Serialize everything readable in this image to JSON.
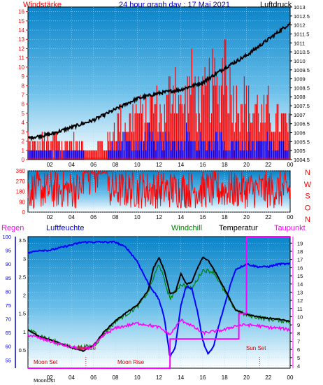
{
  "header": {
    "left_title": "Windstärke",
    "center_title": "24 hour graph day : 17 Mai 2021",
    "right_title": "Luftdruck"
  },
  "colors": {
    "wind": "#ff0000",
    "wind_gust_low": "#0000ff",
    "pressure": "#000000",
    "humidity": "#0000ff",
    "windchill": "#008000",
    "temperature": "#000000",
    "dewpoint": "#ff00ff",
    "rain": "#ff00ff",
    "title_blue": "#0000cc",
    "label_red": "#ff0000"
  },
  "labels": {
    "regen": "Regen",
    "luftfeuchte": "Luftfeuchte",
    "windchill": "Windchill",
    "temperatur": "Temperatur",
    "taupunkt": "Taupunkt",
    "moon_set": "Moon Set",
    "sunrise": "Sunrise",
    "moon_rise": "Moon Rise",
    "sun_set": "Sun Set",
    "moon_ost": "MoonOst",
    "compass": [
      "N",
      "W",
      "S",
      "O",
      "N"
    ]
  },
  "chart_data": [
    {
      "type": "bar",
      "panel": "wind",
      "xlabel": "",
      "ylabel": "Windstärke",
      "x_ticks": [
        "02",
        "04",
        "06",
        "08",
        "10",
        "12",
        "14",
        "16",
        "18",
        "20",
        "22",
        "00"
      ],
      "y_ticks_left": [
        0,
        1,
        2,
        3,
        4,
        5,
        6,
        7,
        8,
        9,
        10,
        11,
        12,
        13,
        14,
        15,
        16
      ],
      "ylim": [
        0,
        16.5
      ],
      "y2_label": "Luftdruck",
      "y2_ticks": [
        "1004.5",
        "1005",
        "1005.5",
        "1006",
        "1006.5",
        "1007",
        "1007.5",
        "1008",
        "1008.5",
        "1009",
        "1009.5",
        "1010",
        "1010.5",
        "1011",
        "1011.5",
        "1012",
        "1012.5",
        "1013"
      ],
      "y2lim": [
        1004.5,
        1013
      ],
      "series": [
        {
          "name": "Luftdruck",
          "type": "line",
          "x": [
            0,
            2,
            4,
            6,
            8,
            10,
            12,
            14,
            16,
            18,
            20,
            22,
            24
          ],
          "values": [
            1005.7,
            1005.9,
            1006.3,
            1006.7,
            1007.3,
            1007.9,
            1008.2,
            1008.4,
            1008.8,
            1009.6,
            1010.3,
            1011.2,
            1012.1
          ]
        }
      ],
      "wind_bars": {
        "x_hours": [
          0,
          0.5,
          1,
          1.5,
          2,
          2.5,
          3,
          3.5,
          4,
          4.5,
          5,
          5.5,
          6,
          6.5,
          7,
          7.5,
          8,
          8.5,
          9,
          9.5,
          10,
          10.5,
          11,
          11.5,
          12,
          12.5,
          13,
          13.5,
          14,
          14.5,
          15,
          15.5,
          16,
          16.5,
          17,
          17.5,
          18,
          18.5,
          19,
          19.5,
          20,
          20.5,
          21,
          21.5,
          22,
          22.5,
          23,
          23.5
        ],
        "max_values": [
          3,
          2,
          2,
          3,
          2,
          4,
          2,
          2,
          3,
          2,
          2,
          2,
          1,
          2,
          2,
          3,
          5,
          6,
          5,
          6,
          7,
          6,
          7,
          8,
          7,
          6,
          10,
          12,
          7,
          9,
          11,
          9,
          8,
          10,
          11,
          9,
          16,
          10,
          8,
          10,
          8,
          7,
          8,
          6,
          7,
          6,
          6,
          5
        ],
        "mean_values": [
          1,
          1,
          1,
          1,
          1,
          1,
          1,
          1,
          1,
          1,
          1,
          0,
          0,
          0,
          0,
          1,
          2,
          2,
          2,
          2,
          2,
          2,
          3,
          2,
          2,
          2,
          3,
          2,
          2,
          3,
          2,
          2,
          2,
          2,
          2,
          3,
          2,
          2,
          2,
          2,
          2,
          2,
          2,
          2,
          2,
          2,
          2,
          2
        ]
      }
    },
    {
      "type": "scatter",
      "panel": "wind_direction",
      "y_ticks": [
        0,
        90,
        180,
        270,
        360
      ],
      "ylim": [
        0,
        360
      ],
      "x_ticks": [
        "02",
        "04",
        "06",
        "08",
        "10",
        "12",
        "14",
        "16",
        "18",
        "20",
        "22",
        "00"
      ]
    },
    {
      "type": "line",
      "panel": "climate",
      "x_ticks": [
        "02",
        "04",
        "06",
        "08",
        "10",
        "12",
        "14",
        "16",
        "18",
        "20",
        "22",
        "00"
      ],
      "y_humidity_ticks": [
        55,
        60,
        65,
        70,
        75,
        80,
        85,
        90,
        95,
        100
      ],
      "humidity_lim": [
        52,
        100
      ],
      "y_rain_ticks": [
        "0.5",
        "1",
        "1.5",
        "2",
        "2.5",
        "3",
        "3.5"
      ],
      "rain_lim": [
        0,
        3.6
      ],
      "y_temp_ticks": [
        4,
        5,
        6,
        7,
        8,
        9,
        10,
        11,
        12,
        13,
        14,
        15,
        16,
        17,
        18,
        19
      ],
      "temp_lim": [
        3.7,
        19.8
      ],
      "series": [
        {
          "name": "Luftfeuchte",
          "x": [
            0,
            1,
            2,
            3,
            4,
            5,
            6,
            7,
            8,
            9,
            10,
            11,
            12,
            12.5,
            13,
            13.5,
            14,
            14.5,
            15,
            15.5,
            16,
            16.5,
            17,
            17.5,
            18,
            18.5,
            19,
            20,
            21,
            22,
            23,
            24
          ],
          "values": [
            94,
            95,
            95,
            96,
            97,
            98,
            98,
            98,
            98,
            96,
            91,
            83,
            77,
            70,
            56,
            60,
            75,
            82,
            81,
            73,
            62,
            57,
            60,
            68,
            75,
            82,
            88,
            90,
            89,
            89,
            90,
            90
          ]
        },
        {
          "name": "Temperatur",
          "x": [
            0,
            1,
            2,
            3,
            4,
            5,
            6,
            7,
            8,
            9,
            10,
            11,
            11.5,
            12,
            12.5,
            13,
            13.5,
            14,
            14.5,
            15,
            15.5,
            16,
            16.5,
            17,
            17.5,
            18,
            19,
            20,
            21,
            22,
            23,
            24
          ],
          "values": [
            8.4,
            7.6,
            7.2,
            6.7,
            6.2,
            5.8,
            6.5,
            8.2,
            9.5,
            10.5,
            11.4,
            13.2,
            16.0,
            17.2,
            15.6,
            12.8,
            13.0,
            15.3,
            14.0,
            14.2,
            15.9,
            17.3,
            16.9,
            15.8,
            14.6,
            13.4,
            10.8,
            10.3,
            10.0,
            9.8,
            9.7,
            9.4
          ]
        },
        {
          "name": "Windchill",
          "x": [
            0,
            2,
            4,
            6,
            8,
            10,
            11,
            12,
            13,
            14,
            15,
            16,
            17,
            18,
            19,
            20,
            22,
            24
          ],
          "values": [
            8.4,
            7.2,
            6.2,
            6.4,
            9.4,
            11.2,
            13.0,
            16.5,
            12.2,
            14.0,
            13.4,
            15.7,
            15.5,
            13.0,
            10.8,
            10.2,
            9.7,
            9.4
          ]
        },
        {
          "name": "Taupunkt",
          "x": [
            0,
            1,
            2,
            3,
            4,
            5,
            6,
            7,
            8,
            9,
            10,
            11,
            12,
            13,
            14,
            15,
            16,
            17,
            18,
            19,
            20,
            21,
            22,
            23,
            24
          ],
          "values": [
            7.8,
            7.4,
            7.0,
            6.6,
            6.3,
            6.0,
            6.4,
            7.8,
            8.6,
            8.9,
            9.2,
            9.0,
            8.7,
            7.8,
            9.6,
            8.9,
            8.0,
            8.2,
            8.4,
            8.9,
            9.0,
            8.9,
            8.7,
            8.6,
            8.4
          ]
        },
        {
          "name": "Regen",
          "x": [
            0,
            13,
            13.01,
            19.3,
            19.31,
            20,
            20.01,
            24
          ],
          "values": [
            0,
            0,
            0.8,
            0.8,
            1.5,
            1.5,
            3.6,
            3.6
          ]
        }
      ],
      "events": [
        {
          "label": "Moon Set",
          "hour": 5.3
        },
        {
          "label": "Sunrise",
          "hour": 5.2
        },
        {
          "label": "Moon Rise",
          "hour": 13.0
        },
        {
          "label": "Sun Set",
          "hour": 21.2
        }
      ]
    }
  ]
}
